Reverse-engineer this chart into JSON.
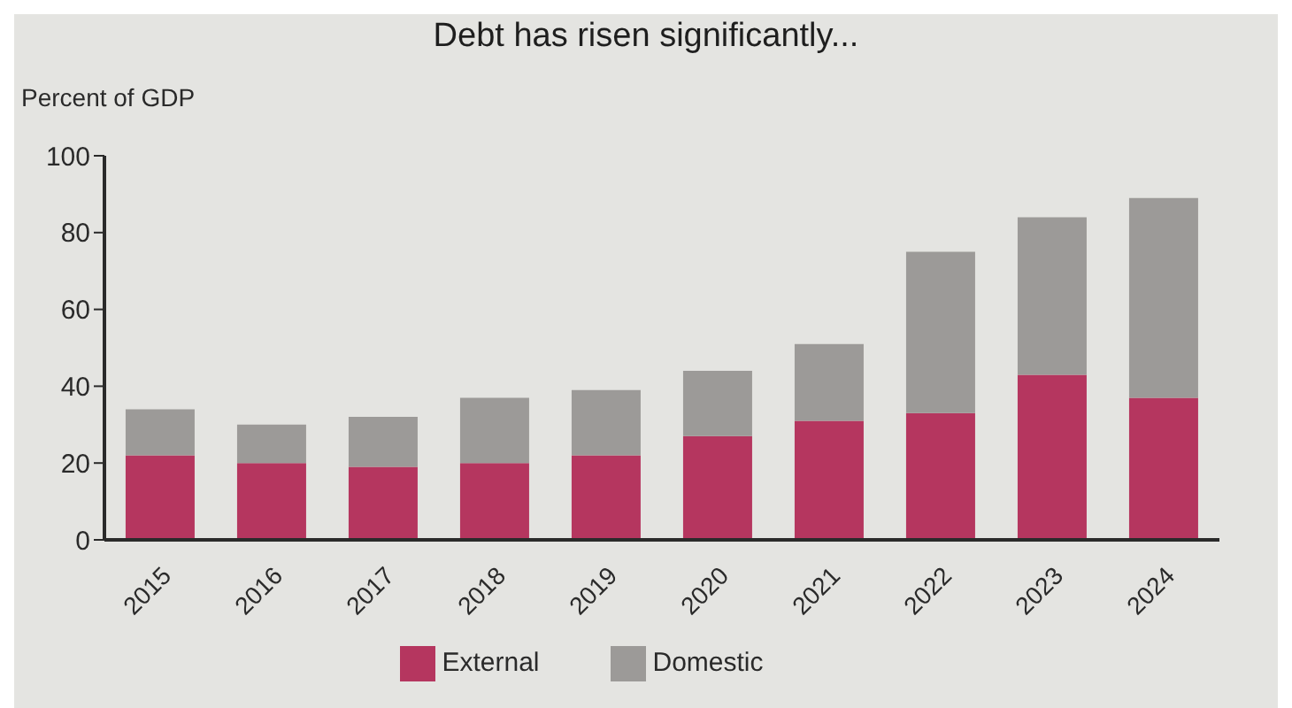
{
  "chart_data": {
    "type": "bar",
    "title": "Debt has risen significantly...",
    "ylabel": "Percent of GDP",
    "categories": [
      "2015",
      "2016",
      "2017",
      "2018",
      "2019",
      "2020",
      "2021",
      "2022",
      "2023",
      "2024"
    ],
    "series": [
      {
        "name": "External",
        "color": "#b5365f",
        "values": [
          22,
          20,
          19,
          20,
          22,
          27,
          31,
          33,
          43,
          37
        ]
      },
      {
        "name": "Domestic",
        "color": "#9c9a98",
        "values": [
          12,
          10,
          13,
          17,
          17,
          17,
          20,
          42,
          41,
          52
        ]
      }
    ],
    "stacked": true,
    "ylim": [
      0,
      100
    ],
    "yticks": [
      0,
      20,
      40,
      60,
      80,
      100
    ],
    "legend": "bottom"
  }
}
